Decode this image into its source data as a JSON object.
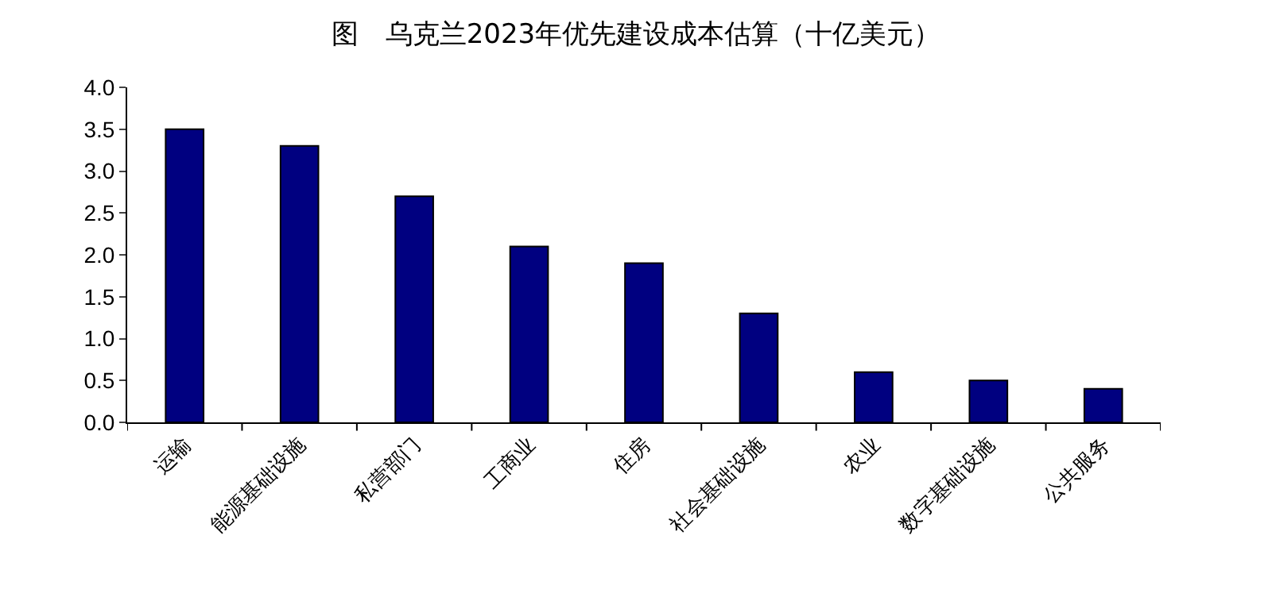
{
  "chart_data": {
    "type": "bar",
    "title": "图　乌克兰2023年优先建设成本估算（十亿美元）",
    "categories": [
      "运输",
      "能源基础设施",
      "私营部门",
      "工商业",
      "住房",
      "社会基础设施",
      "农业",
      "数字基础设施",
      "公共服务"
    ],
    "values": [
      3.5,
      3.3,
      2.7,
      2.1,
      1.9,
      1.3,
      0.6,
      0.5,
      0.4
    ],
    "color": "#000080",
    "ylim": [
      0,
      4
    ],
    "yticks": [
      {
        "value": 0,
        "label": "0.0"
      },
      {
        "value": 0.5,
        "label": "0.5"
      },
      {
        "value": 1,
        "label": "1.0"
      },
      {
        "value": 1.5,
        "label": "1.5"
      },
      {
        "value": 2,
        "label": "2.0"
      },
      {
        "value": 2.5,
        "label": "2.5"
      },
      {
        "value": 3,
        "label": "3.0"
      },
      {
        "value": 3.5,
        "label": "3.5"
      },
      {
        "value": 4,
        "label": "4.0"
      }
    ],
    "grid": false
  }
}
